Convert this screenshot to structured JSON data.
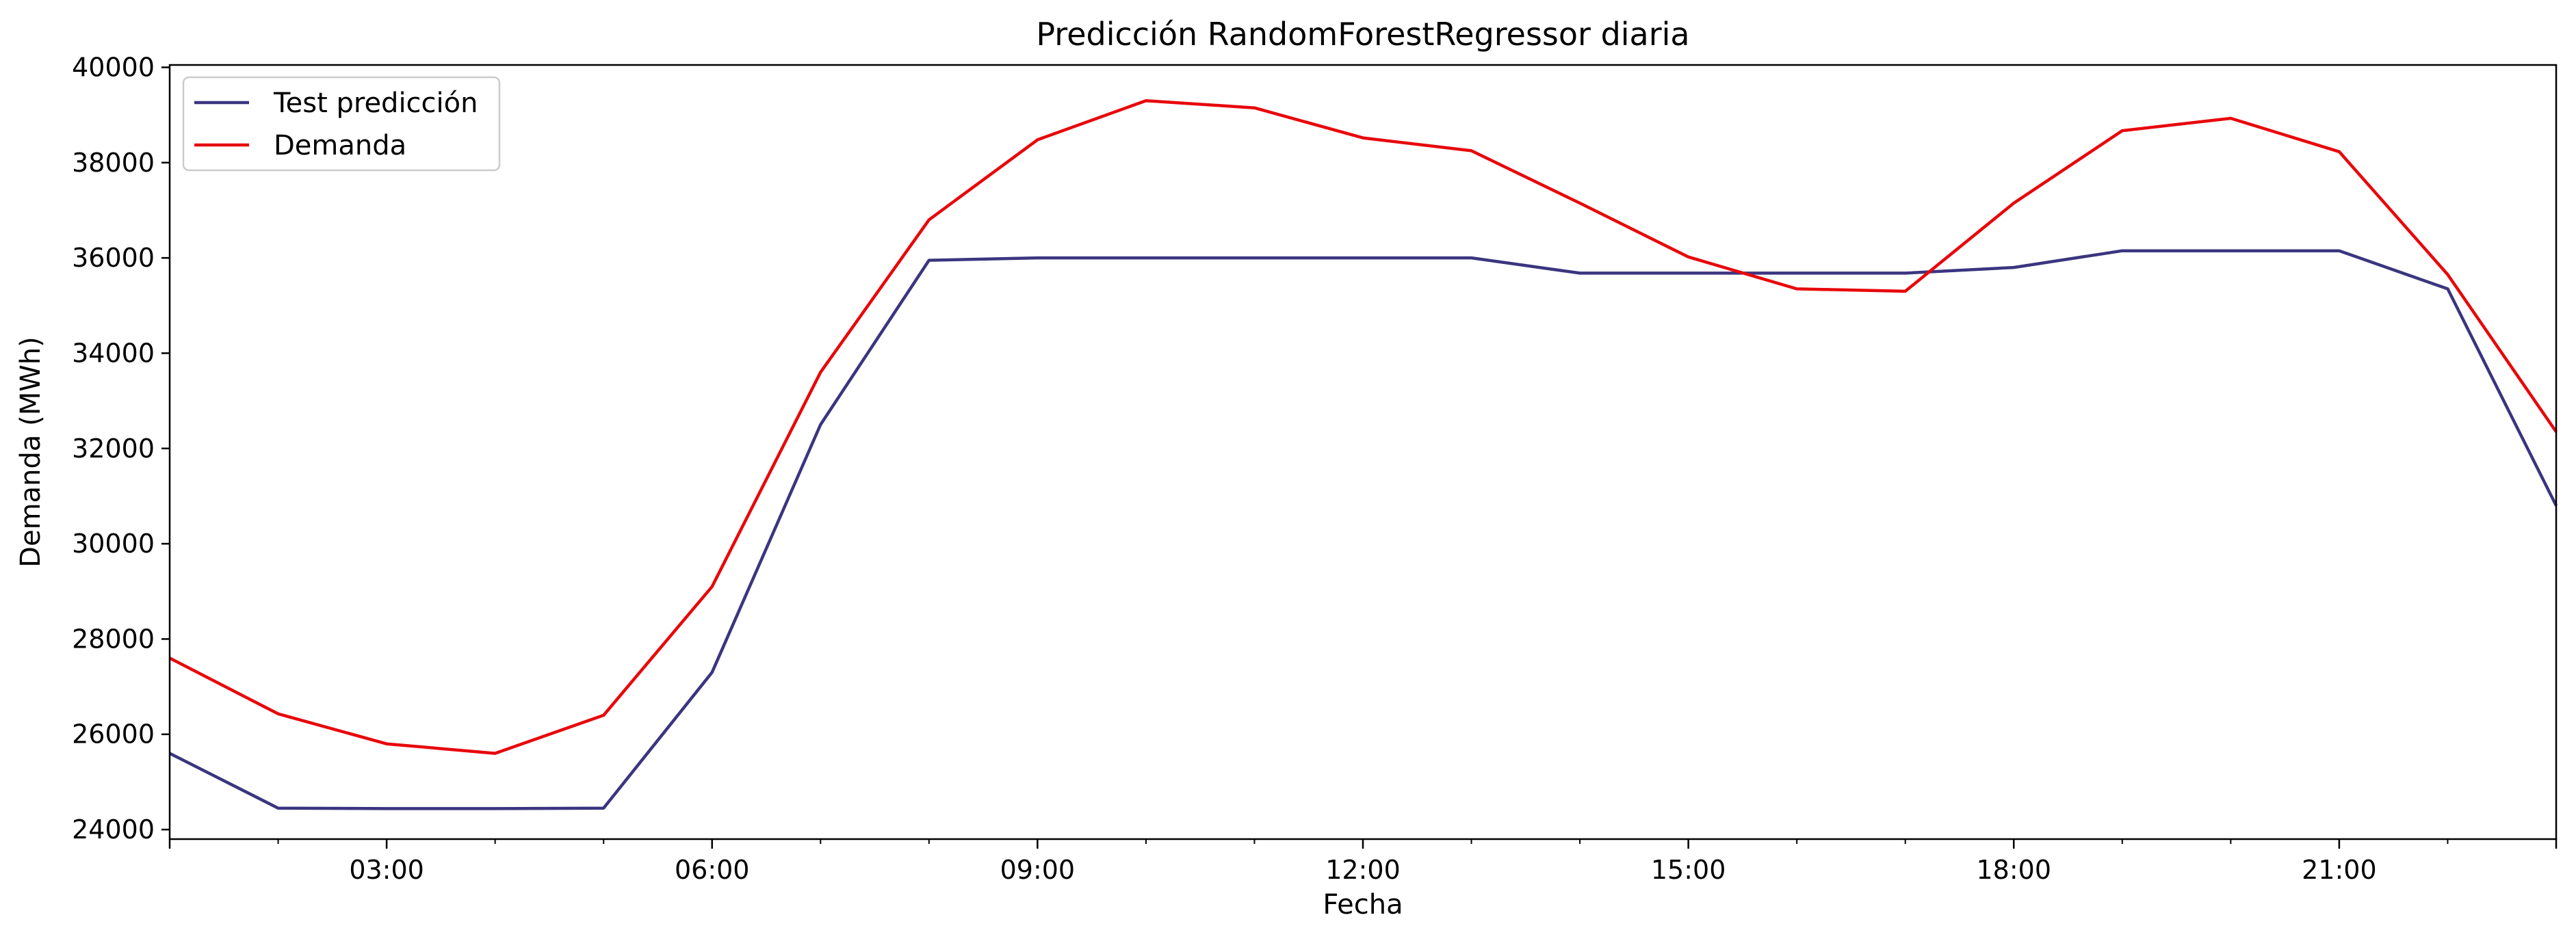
{
  "chart_data": {
    "type": "line",
    "title": "Predicción RandomForestRegressor diaria",
    "xlabel": "Fecha",
    "ylabel": "Demanda (MWh)",
    "x": [
      "01:00",
      "02:00",
      "03:00",
      "04:00",
      "05:00",
      "06:00",
      "07:00",
      "08:00",
      "09:00",
      "10:00",
      "11:00",
      "12:00",
      "13:00",
      "14:00",
      "15:00",
      "16:00",
      "17:00",
      "18:00",
      "19:00",
      "20:00",
      "21:00",
      "22:00",
      "23:00"
    ],
    "xlim": [
      "01:00",
      "23:00"
    ],
    "x_ticks": [
      "03:00",
      "06:00",
      "09:00",
      "12:00",
      "15:00",
      "18:00",
      "21:00"
    ],
    "ylim": [
      23800,
      40050
    ],
    "y_ticks": [
      24000,
      26000,
      28000,
      30000,
      32000,
      34000,
      36000,
      38000,
      40000
    ],
    "grid": false,
    "legend_position": "upper-left",
    "series": [
      {
        "name": "Test predicción",
        "color": "#3b3580",
        "values": [
          25600,
          24450,
          24440,
          24440,
          24450,
          27300,
          32500,
          35950,
          36000,
          36000,
          36000,
          36000,
          36000,
          35680,
          35680,
          35680,
          35680,
          35800,
          36150,
          36150,
          36150,
          35350,
          30800
        ]
      },
      {
        "name": "Demanda",
        "color": "#e8080a",
        "values": [
          27600,
          26430,
          25800,
          25600,
          26400,
          29100,
          33600,
          36800,
          38480,
          39300,
          39150,
          38520,
          38250,
          37150,
          36020,
          35350,
          35300,
          37150,
          38670,
          38930,
          38230,
          35650,
          32350
        ]
      }
    ]
  }
}
